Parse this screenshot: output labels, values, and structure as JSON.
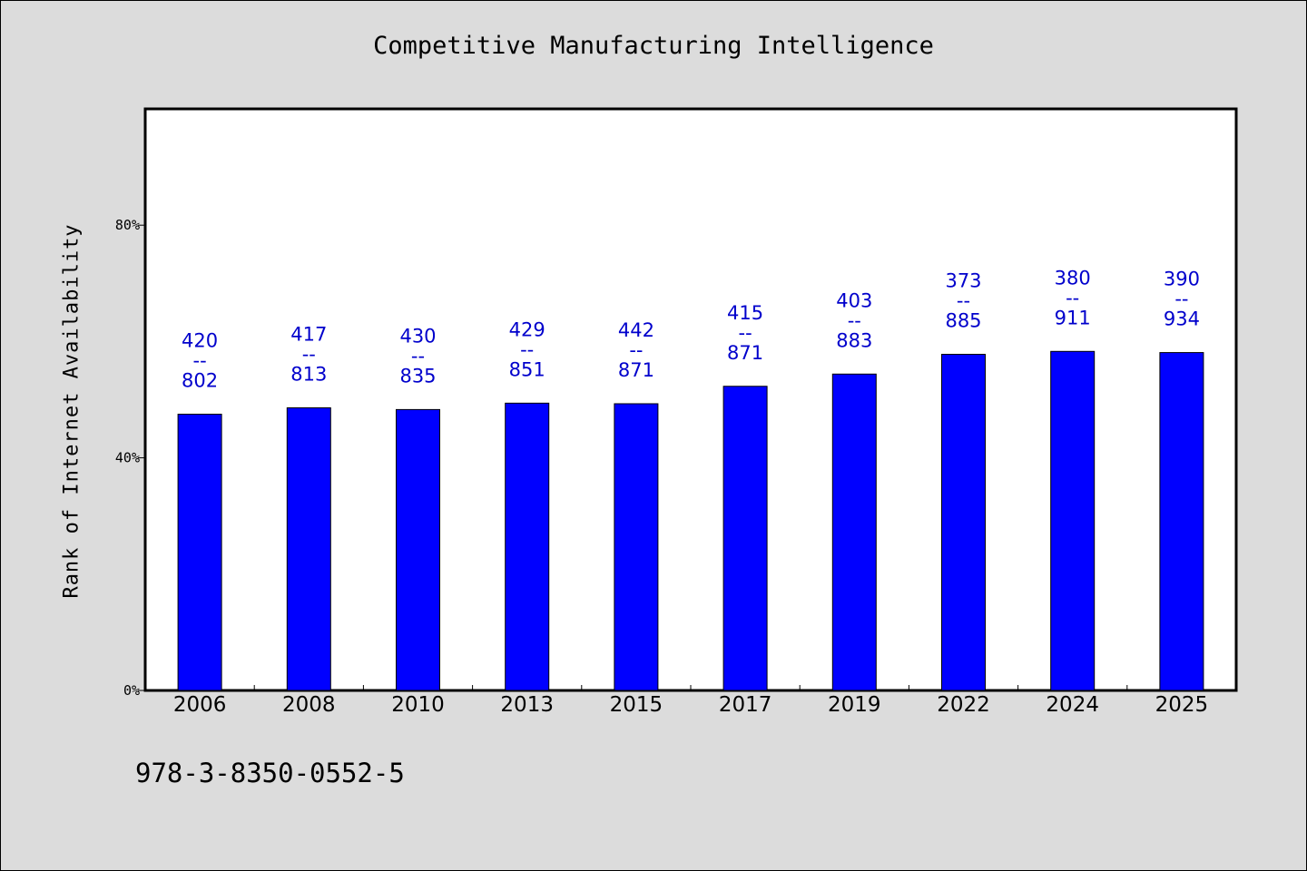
{
  "chart_data": {
    "type": "bar",
    "title": "Competitive Manufacturing Intelligence",
    "ylabel": "Rank of Internet Availability",
    "xlabel": "",
    "ylim": [
      0,
      100
    ],
    "yticks": [
      0,
      40,
      80
    ],
    "ytick_labels": [
      "0%",
      "40%",
      "80%"
    ],
    "grid": false,
    "categories": [
      "2006",
      "2008",
      "2010",
      "2013",
      "2015",
      "2017",
      "2019",
      "2022",
      "2024",
      "2025"
    ],
    "values": [
      47.5,
      48.6,
      48.3,
      49.4,
      49.3,
      52.3,
      54.4,
      57.8,
      58.3,
      58.1
    ],
    "bar_color": "#0000ff",
    "label_color": "#0000cc",
    "data_labels": [
      {
        "top": "420",
        "sep": "--",
        "bottom": "802"
      },
      {
        "top": "417",
        "sep": "--",
        "bottom": "813"
      },
      {
        "top": "430",
        "sep": "--",
        "bottom": "835"
      },
      {
        "top": "429",
        "sep": "--",
        "bottom": "851"
      },
      {
        "top": "442",
        "sep": "--",
        "bottom": "871"
      },
      {
        "top": "415",
        "sep": "--",
        "bottom": "871"
      },
      {
        "top": "403",
        "sep": "--",
        "bottom": "883"
      },
      {
        "top": "373",
        "sep": "--",
        "bottom": "885"
      },
      {
        "top": "380",
        "sep": "--",
        "bottom": "911"
      },
      {
        "top": "390",
        "sep": "--",
        "bottom": "934"
      }
    ]
  },
  "footer": {
    "isbn": "978-3-8350-0552-5"
  }
}
